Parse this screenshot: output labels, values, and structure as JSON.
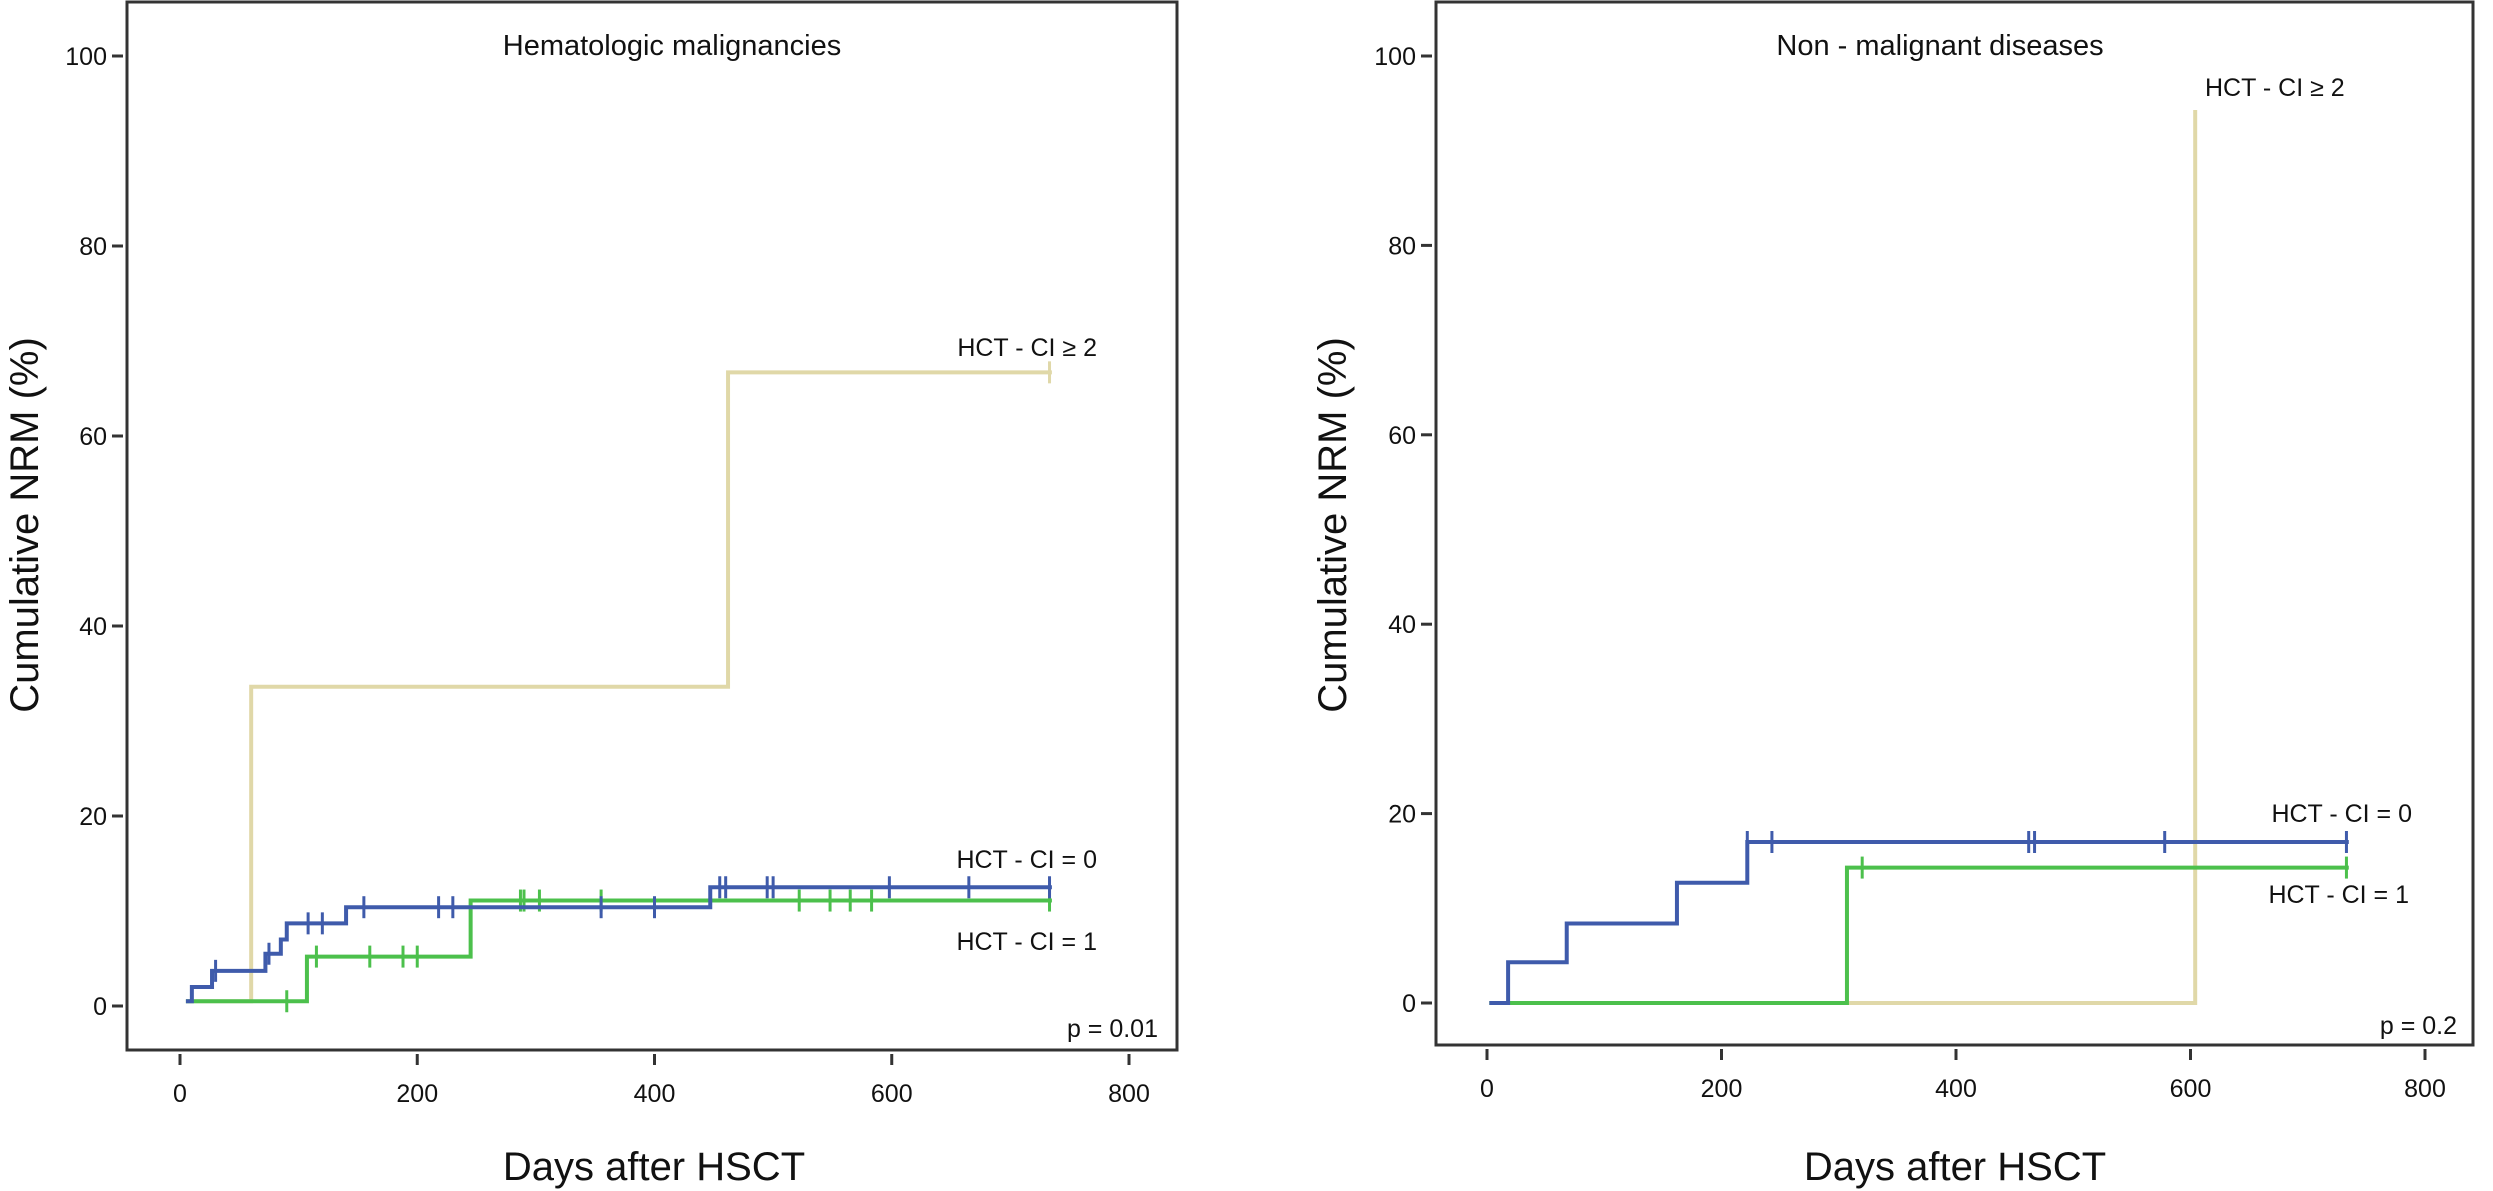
{
  "chart_data": [
    {
      "type": "line",
      "step": true,
      "title": "Hematologic malignancies",
      "xlabel": "Days after HSCT",
      "ylabel": "Cumulative NRM (%)",
      "xlim": [
        0,
        800
      ],
      "ylim": [
        0,
        100
      ],
      "xticks": [
        0,
        200,
        400,
        600,
        800
      ],
      "yticks": [
        0,
        20,
        40,
        60,
        80,
        100
      ],
      "grid": false,
      "annotation": "p = 0.01",
      "series": [
        {
          "name": "HCT - CI = 0",
          "color": "#3f5bab",
          "steps": [
            [
              5,
              0.5
            ],
            [
              10,
              2
            ],
            [
              27,
              3.7
            ],
            [
              72,
              5.5
            ],
            [
              85,
              7
            ],
            [
              90,
              8.7
            ],
            [
              140,
              10.4
            ],
            [
              447,
              12.5
            ],
            [
              735,
              12.5
            ]
          ],
          "censored": [
            30,
            75,
            108,
            120,
            155,
            218,
            230,
            355,
            400,
            455,
            460,
            495,
            500,
            598,
            665,
            733
          ]
        },
        {
          "name": "HCT - CI = 1",
          "color": "#4cc04c",
          "steps": [
            [
              5,
              0.5
            ],
            [
              107,
              5.2
            ],
            [
              245,
              11.1
            ],
            [
              735,
              11.1
            ]
          ],
          "censored": [
            90,
            115,
            160,
            188,
            200,
            287,
            290,
            303,
            355,
            522,
            548,
            565,
            583,
            733
          ]
        },
        {
          "name": "HCT - CI ≥ 2",
          "color": "#e0d8a8",
          "steps": [
            [
              5,
              0.5
            ],
            [
              60,
              33.6
            ],
            [
              462,
              66.7
            ],
            [
              735,
              66.7
            ]
          ],
          "censored": [
            733
          ]
        }
      ]
    },
    {
      "type": "line",
      "step": true,
      "title": "Non - malignant diseases",
      "xlabel": "Days after HSCT",
      "ylabel": "Cumulative NRM (%)",
      "xlim": [
        0,
        800
      ],
      "ylim": [
        0,
        100
      ],
      "xticks": [
        0,
        200,
        400,
        600,
        800
      ],
      "yticks": [
        0,
        20,
        40,
        60,
        80,
        100
      ],
      "grid": false,
      "annotation": "p = 0.2",
      "series": [
        {
          "name": "HCT - CI = 0",
          "color": "#3f5bab",
          "steps": [
            [
              2,
              0
            ],
            [
              18,
              4.3
            ],
            [
              68,
              8.4
            ],
            [
              162,
              12.7
            ],
            [
              222,
              17
            ],
            [
              735,
              17
            ]
          ],
          "censored": [
            222,
            243,
            462,
            467,
            578,
            733
          ]
        },
        {
          "name": "HCT - CI = 1",
          "color": "#4cc04c",
          "steps": [
            [
              2,
              0
            ],
            [
              307,
              14.3
            ],
            [
              735,
              14.3
            ]
          ],
          "censored": [
            320,
            733
          ]
        },
        {
          "name": "HCT - CI ≥ 2",
          "color": "#e0d8a8",
          "steps": [
            [
              2,
              0
            ],
            [
              604,
              94.3
            ],
            [
              604,
              94.3
            ]
          ],
          "censored": []
        }
      ]
    }
  ]
}
